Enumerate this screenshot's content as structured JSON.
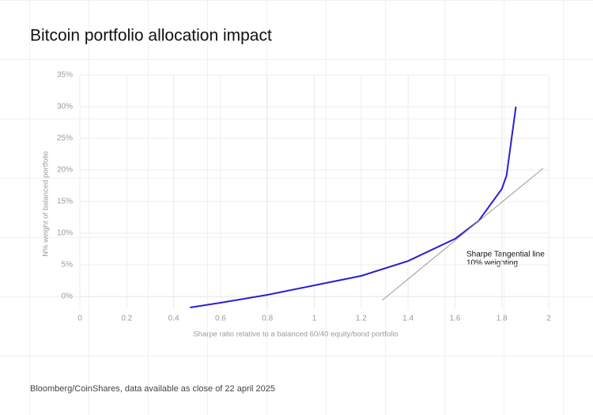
{
  "chart_data": {
    "type": "line",
    "title": "Bitcoin portfolio allocation impact",
    "xlabel": "Sharpe ratio relative to a balanced 60/40 equity/bond portfolio",
    "ylabel": "N% weight of balanced portfolio",
    "source": "Bloomberg/CoinShares, data available as close of 22 april 2025",
    "annotation": [
      "Sharpe Tangential line",
      "10% weighting"
    ],
    "xlim": [
      0,
      2
    ],
    "ylim": [
      -2,
      35
    ],
    "xticks": [
      0,
      0.2,
      0.4,
      0.6,
      0.8,
      1,
      1.2,
      1.4,
      1.6,
      1.8,
      2
    ],
    "yticks": [
      {
        "value": 0,
        "label": "0%"
      },
      {
        "value": 5,
        "label": "5%"
      },
      {
        "value": 10,
        "label": "10%"
      },
      {
        "value": 15,
        "label": "15%"
      },
      {
        "value": 20,
        "label": "20%"
      },
      {
        "value": 25,
        "label": "25%"
      },
      {
        "value": 30,
        "label": "30%"
      },
      {
        "value": 35,
        "label": "35%"
      }
    ],
    "grid": true,
    "series": [
      {
        "color": "#2a1fcf",
        "x": [
          0.47,
          0.6,
          0.8,
          1,
          1.2,
          1.4,
          1.6,
          1.7,
          1.8,
          1.82,
          1.86
        ],
        "values": [
          -1.75,
          -1,
          0.25,
          1.75,
          3.25,
          5.6,
          9.1,
          11.9,
          17,
          19.1,
          30
        ]
      },
      {
        "color": "#9a9a9a",
        "x": [
          1.29,
          1.976
        ],
        "values": [
          -0.6,
          20.25
        ]
      }
    ]
  }
}
